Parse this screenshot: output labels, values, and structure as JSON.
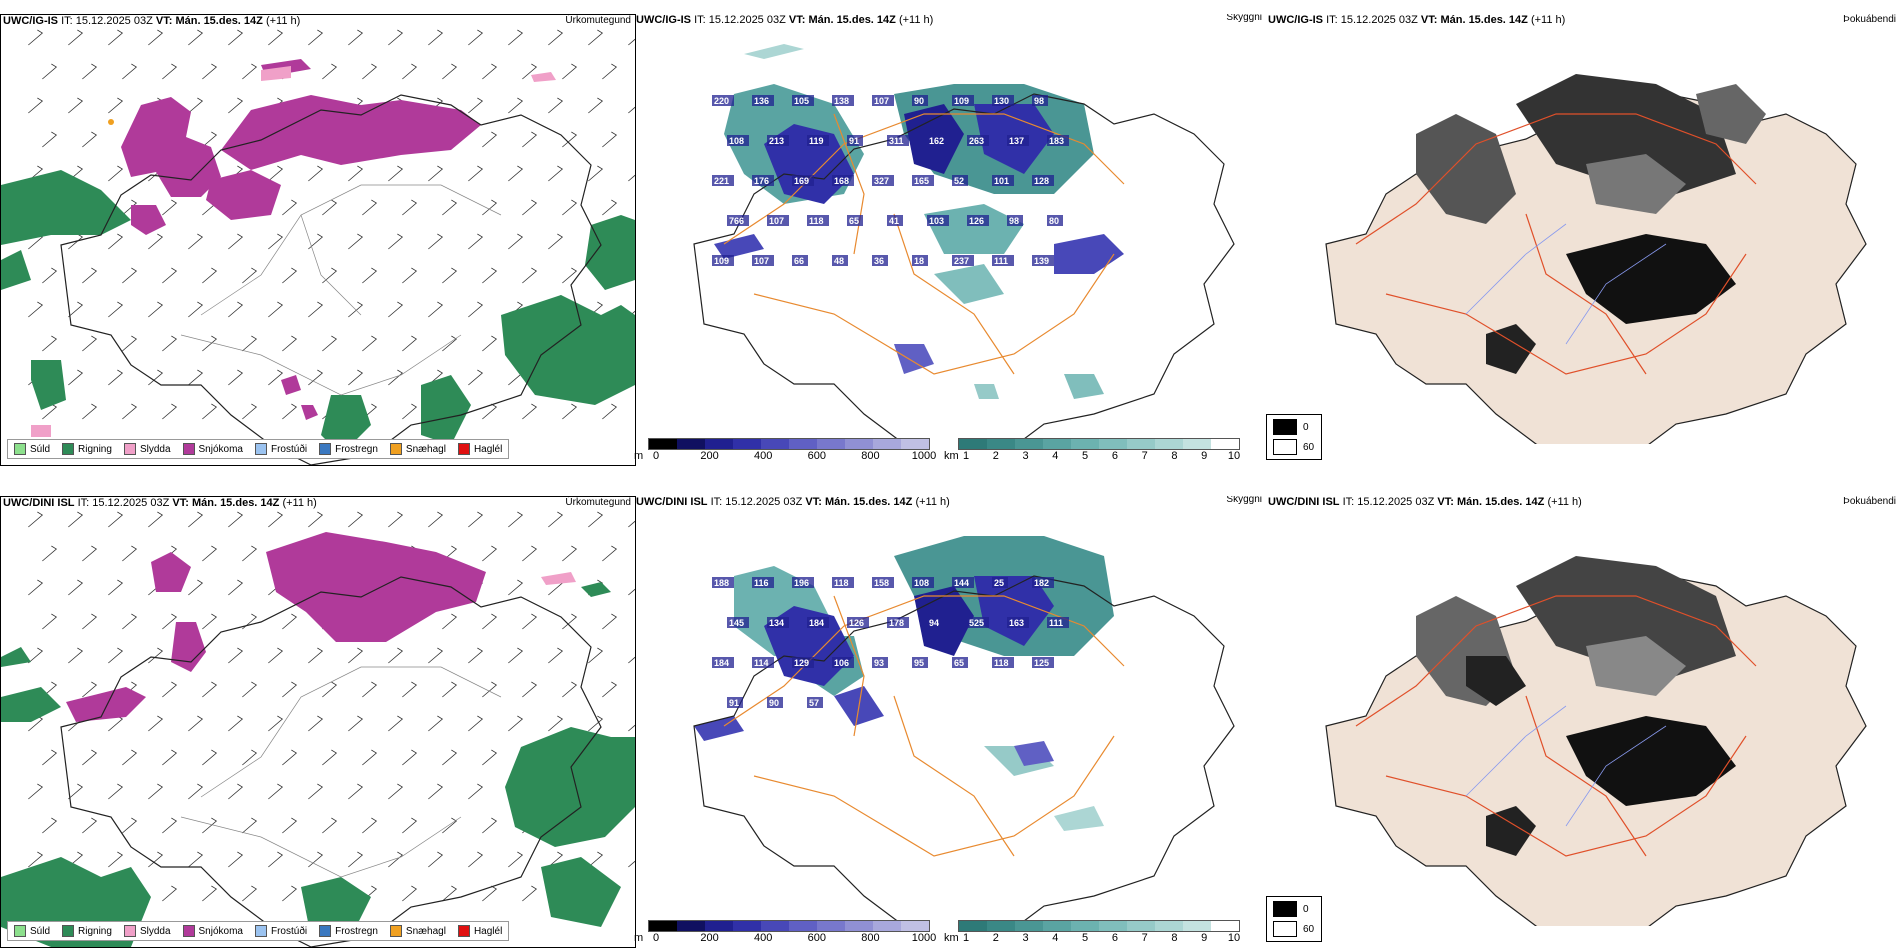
{
  "rows": [
    {
      "model": "UWC/IG-IS",
      "it_label": "IT:",
      "it_value": "15.12.2025 03Z",
      "vt_label": "VT:",
      "vt_value": "Mán. 15.des. 14Z",
      "lead": "(+11 h)"
    },
    {
      "model": "UWC/DINI ISL",
      "it_label": "IT:",
      "it_value": "15.12.2025 03Z",
      "vt_label": "VT:",
      "vt_value": "Mán. 15.des. 14Z",
      "lead": "(+11 h)"
    }
  ],
  "panels": {
    "precip_type_title": "Úrkomutegund",
    "visibility_title": "Skyggni",
    "fog_title": "Þokuábendi"
  },
  "precip_legend": [
    {
      "label": "Súld",
      "color": "#8de08d"
    },
    {
      "label": "Rigning",
      "color": "#2e8b57"
    },
    {
      "label": "Slydda",
      "color": "#f0a0c8"
    },
    {
      "label": "Snjókoma",
      "color": "#b03a9a"
    },
    {
      "label": "Frostúði",
      "color": "#9bc3f0"
    },
    {
      "label": "Frostregn",
      "color": "#3a78c0"
    },
    {
      "label": "Snæhagl",
      "color": "#f0a020"
    },
    {
      "label": "Haglél",
      "color": "#e01010"
    }
  ],
  "ceiling_bar": {
    "unit": "m",
    "ticks": [
      "0",
      "200",
      "400",
      "600",
      "800",
      "1000"
    ],
    "colors": [
      "#000000",
      "#101060",
      "#202090",
      "#3030a8",
      "#4848b8",
      "#6060c4",
      "#7878cc",
      "#9090d4",
      "#a8a8dc",
      "#c0c0e4"
    ]
  },
  "visibility_bar": {
    "unit": "km",
    "ticks": [
      "1",
      "2",
      "3",
      "4",
      "5",
      "6",
      "7",
      "8",
      "9",
      "10"
    ],
    "colors": [
      "#2e7a78",
      "#3a8886",
      "#4a9694",
      "#5aa4a2",
      "#6cb2b0",
      "#80bebc",
      "#96cac8",
      "#acd6d4",
      "#c4e2e0",
      "#ffffff"
    ]
  },
  "fog_legend": [
    {
      "label": "0",
      "color": "#000000"
    },
    {
      "label": "60",
      "color": "#ffffff"
    }
  ],
  "cloud_labels_top": [
    "220",
    "136",
    "105",
    "138",
    "107",
    "90",
    "109",
    "130",
    "98",
    "108",
    "213",
    "119",
    "91",
    "311",
    "162",
    "263",
    "137",
    "183",
    "221",
    "176",
    "169",
    "168",
    "327",
    "165",
    "52",
    "101",
    "128",
    "766",
    "107",
    "118",
    "65",
    "41",
    "103",
    "126",
    "98",
    "80",
    "109",
    "107",
    "66",
    "48",
    "36",
    "18",
    "237",
    "111",
    "139"
  ],
  "cloud_labels_bottom": [
    "188",
    "116",
    "196",
    "118",
    "158",
    "108",
    "144",
    "25",
    "182",
    "145",
    "134",
    "184",
    "126",
    "178",
    "94",
    "525",
    "163",
    "111",
    "184",
    "114",
    "129",
    "106",
    "93",
    "95",
    "65",
    "118",
    "125",
    "91",
    "90",
    "57"
  ]
}
